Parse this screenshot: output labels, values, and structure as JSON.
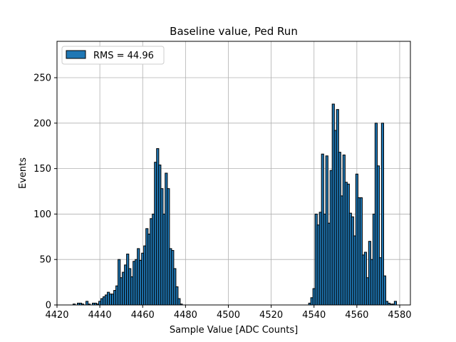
{
  "chart_data": {
    "type": "bar",
    "title": "Baseline value, Ped Run",
    "xlabel": "Sample Value [ADC Counts]",
    "ylabel": "Events",
    "xlim": [
      4420,
      4585
    ],
    "ylim": [
      0,
      290
    ],
    "xticks": [
      4420,
      4440,
      4460,
      4480,
      4500,
      4520,
      4540,
      4560,
      4580
    ],
    "yticks": [
      0,
      50,
      100,
      150,
      200,
      250
    ],
    "grid": true,
    "legend_position": "top-left",
    "bar_color": "#1f77b4",
    "edge_color": "#000000",
    "bin_width": 1.05,
    "series": [
      {
        "name": "RMS = 44.96",
        "x": [
          4428,
          4429,
          4430,
          4431,
          4432,
          4433,
          4434,
          4435,
          4436,
          4437,
          4438,
          4439,
          4440,
          4441,
          4442,
          4443,
          4444,
          4445,
          4446,
          4447,
          4448,
          4449,
          4450,
          4451,
          4452,
          4453,
          4454,
          4455,
          4456,
          4457,
          4458,
          4459,
          4460,
          4461,
          4462,
          4463,
          4464,
          4465,
          4466,
          4467,
          4468,
          4469,
          4470,
          4471,
          4472,
          4473,
          4474,
          4475,
          4476,
          4477,
          4478,
          4479,
          4480,
          4481,
          4538,
          4539,
          4540,
          4541,
          4542,
          4543,
          4544,
          4545,
          4546,
          4547,
          4548,
          4549,
          4550,
          4551,
          4552,
          4553,
          4554,
          4555,
          4556,
          4557,
          4558,
          4559,
          4560,
          4561,
          4562,
          4563,
          4564,
          4565,
          4566,
          4567,
          4568,
          4569,
          4570,
          4571,
          4572,
          4573,
          4574,
          4575,
          4576,
          4577,
          4578
        ],
        "values": [
          1,
          0,
          2,
          2,
          1,
          0,
          4,
          1,
          0,
          2,
          2,
          1,
          4,
          7,
          9,
          11,
          14,
          12,
          12,
          16,
          21,
          50,
          30,
          36,
          44,
          56,
          40,
          31,
          48,
          50,
          62,
          49,
          57,
          65,
          84,
          78,
          95,
          100,
          157,
          172,
          154,
          128,
          100,
          145,
          128,
          62,
          60,
          40,
          20,
          7,
          1,
          0,
          0,
          0,
          2,
          8,
          18,
          100,
          88,
          102,
          166,
          100,
          164,
          90,
          148,
          221,
          192,
          215,
          168,
          120,
          165,
          135,
          133,
          101,
          97,
          76,
          144,
          118,
          118,
          55,
          58,
          30,
          70,
          50,
          100,
          200,
          153,
          52,
          200,
          32,
          4,
          2,
          1,
          1,
          4
        ]
      }
    ]
  }
}
